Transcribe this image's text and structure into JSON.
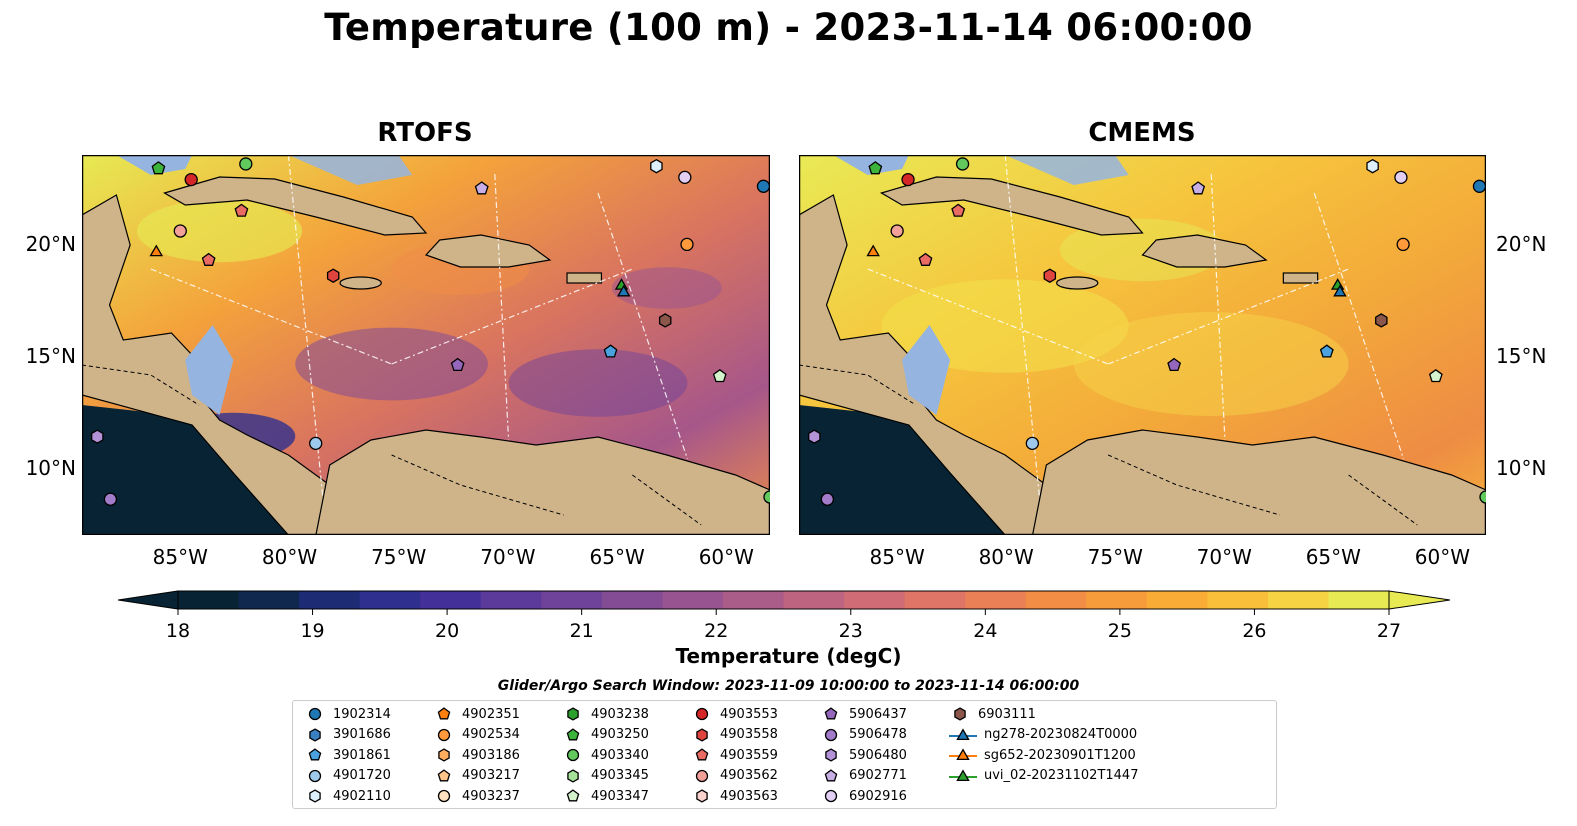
{
  "title": "Temperature (100 m) - 2023-11-14 06:00:00",
  "panels": [
    {
      "title": "RTOFS",
      "gradient": "rtofs"
    },
    {
      "title": "CMEMS",
      "gradient": "cmems"
    }
  ],
  "lon_ticks": [
    "85°W",
    "80°W",
    "75°W",
    "70°W",
    "65°W",
    "60°W"
  ],
  "lat_ticks": [
    "20°N",
    "15°N",
    "10°N"
  ],
  "colorbar": {
    "label": "Temperature (degC)",
    "ticks": [
      "18",
      "19",
      "20",
      "21",
      "22",
      "23",
      "24",
      "25",
      "26",
      "27"
    ],
    "colors": [
      "#082434",
      "#10284e",
      "#1d2a74",
      "#2f2f8f",
      "#433199",
      "#5b3a9b",
      "#6f4399",
      "#834c95",
      "#985490",
      "#ab5d89",
      "#be6480",
      "#cf6c75",
      "#df7567",
      "#ea8055",
      "#f28d45",
      "#f79c3a",
      "#f9ad37",
      "#f9bf3a",
      "#f5d343",
      "#e7ea52"
    ]
  },
  "search_window": "Glider/Argo Search Window: 2023-11-09 10:00:00 to 2023-11-14 06:00:00",
  "legend": [
    {
      "label": "1902314",
      "marker": "circle",
      "color": "#1f77b4"
    },
    {
      "label": "3901686",
      "marker": "hexagon",
      "color": "#3a7fc1"
    },
    {
      "label": "3901861",
      "marker": "pentagon",
      "color": "#4aa3df"
    },
    {
      "label": "4901720",
      "marker": "circle",
      "color": "#9ec9ea"
    },
    {
      "label": "4902110",
      "marker": "hexagon",
      "color": "#dceffb"
    },
    {
      "label": "4902351",
      "marker": "pentagon",
      "color": "#ff7f0e"
    },
    {
      "label": "4902534",
      "marker": "circle",
      "color": "#ff9a3c"
    },
    {
      "label": "4903186",
      "marker": "hexagon",
      "color": "#ffad5e"
    },
    {
      "label": "4903217",
      "marker": "pentagon",
      "color": "#ffc48a"
    },
    {
      "label": "4903237",
      "marker": "circle",
      "color": "#ffe2bf"
    },
    {
      "label": "4903238",
      "marker": "hexagon",
      "color": "#2ca02c"
    },
    {
      "label": "4903250",
      "marker": "pentagon",
      "color": "#3cb43c"
    },
    {
      "label": "4903340",
      "marker": "circle",
      "color": "#62c95c"
    },
    {
      "label": "4903345",
      "marker": "hexagon",
      "color": "#a6e19a"
    },
    {
      "label": "4903347",
      "marker": "pentagon",
      "color": "#d4f2cc"
    },
    {
      "label": "4903553",
      "marker": "circle",
      "color": "#d62728"
    },
    {
      "label": "4903558",
      "marker": "hexagon",
      "color": "#e0443f"
    },
    {
      "label": "4903559",
      "marker": "pentagon",
      "color": "#ea6a64"
    },
    {
      "label": "4903562",
      "marker": "circle",
      "color": "#f3a099"
    },
    {
      "label": "4903563",
      "marker": "hexagon",
      "color": "#fad2ce"
    },
    {
      "label": "5906437",
      "marker": "pentagon",
      "color": "#9467bd"
    },
    {
      "label": "5906478",
      "marker": "circle",
      "color": "#a27ccb"
    },
    {
      "label": "5906480",
      "marker": "hexagon",
      "color": "#b392d8"
    },
    {
      "label": "6902771",
      "marker": "pentagon",
      "color": "#c7aee5"
    },
    {
      "label": "6902916",
      "marker": "circle",
      "color": "#e2cff3"
    },
    {
      "label": "6903111",
      "marker": "hexagon",
      "color": "#8c564b"
    },
    {
      "label": "ng278-20230824T0000",
      "marker": "triangle-line",
      "color": "#1f77b4"
    },
    {
      "label": "sg652-20230901T1200",
      "marker": "triangle-line",
      "color": "#ff7f0e"
    },
    {
      "label": "uvi_02-20231102T1447",
      "marker": "triangle-line",
      "color": "#2ca02c"
    }
  ],
  "map_markers": [
    {
      "label": "4903250",
      "lon": -86.0,
      "lat": 23.4
    },
    {
      "label": "4903553",
      "lon": -84.5,
      "lat": 22.9
    },
    {
      "label": "4903340",
      "lon": -82.0,
      "lat": 23.6
    },
    {
      "label": "4903559",
      "lon": -82.2,
      "lat": 21.5
    },
    {
      "label": "4903562",
      "lon": -85.0,
      "lat": 20.6
    },
    {
      "label": "sg652-20230901T1200",
      "lon": -86.1,
      "lat": 19.7
    },
    {
      "label": "4903559",
      "lon": -83.7,
      "lat": 19.3
    },
    {
      "label": "4903558",
      "lon": -78.0,
      "lat": 18.6
    },
    {
      "label": "6902771",
      "lon": -71.2,
      "lat": 22.5
    },
    {
      "label": "4902110",
      "lon": -63.2,
      "lat": 23.5
    },
    {
      "label": "6902916",
      "lon": -61.9,
      "lat": 23.0
    },
    {
      "label": "1902314",
      "lon": -58.3,
      "lat": 22.6
    },
    {
      "label": "4902534",
      "lon": -61.8,
      "lat": 20.0
    },
    {
      "label": "uvi_02-20231102T1447",
      "lon": -64.8,
      "lat": 18.2
    },
    {
      "label": "ng278-20230824T0000",
      "lon": -64.7,
      "lat": 17.9
    },
    {
      "label": "6903111",
      "lon": -62.8,
      "lat": 16.6
    },
    {
      "label": "3901861",
      "lon": -65.3,
      "lat": 15.2
    },
    {
      "label": "5906437",
      "lon": -72.3,
      "lat": 14.6
    },
    {
      "label": "4903347",
      "lon": -60.3,
      "lat": 14.1
    },
    {
      "label": "4901720",
      "lon": -78.8,
      "lat": 11.1
    },
    {
      "label": "5906480",
      "lon": -88.8,
      "lat": 11.4
    },
    {
      "label": "5906478",
      "lon": -88.2,
      "lat": 8.6
    },
    {
      "label": "4903340",
      "lon": -58.0,
      "lat": 8.7
    }
  ]
}
